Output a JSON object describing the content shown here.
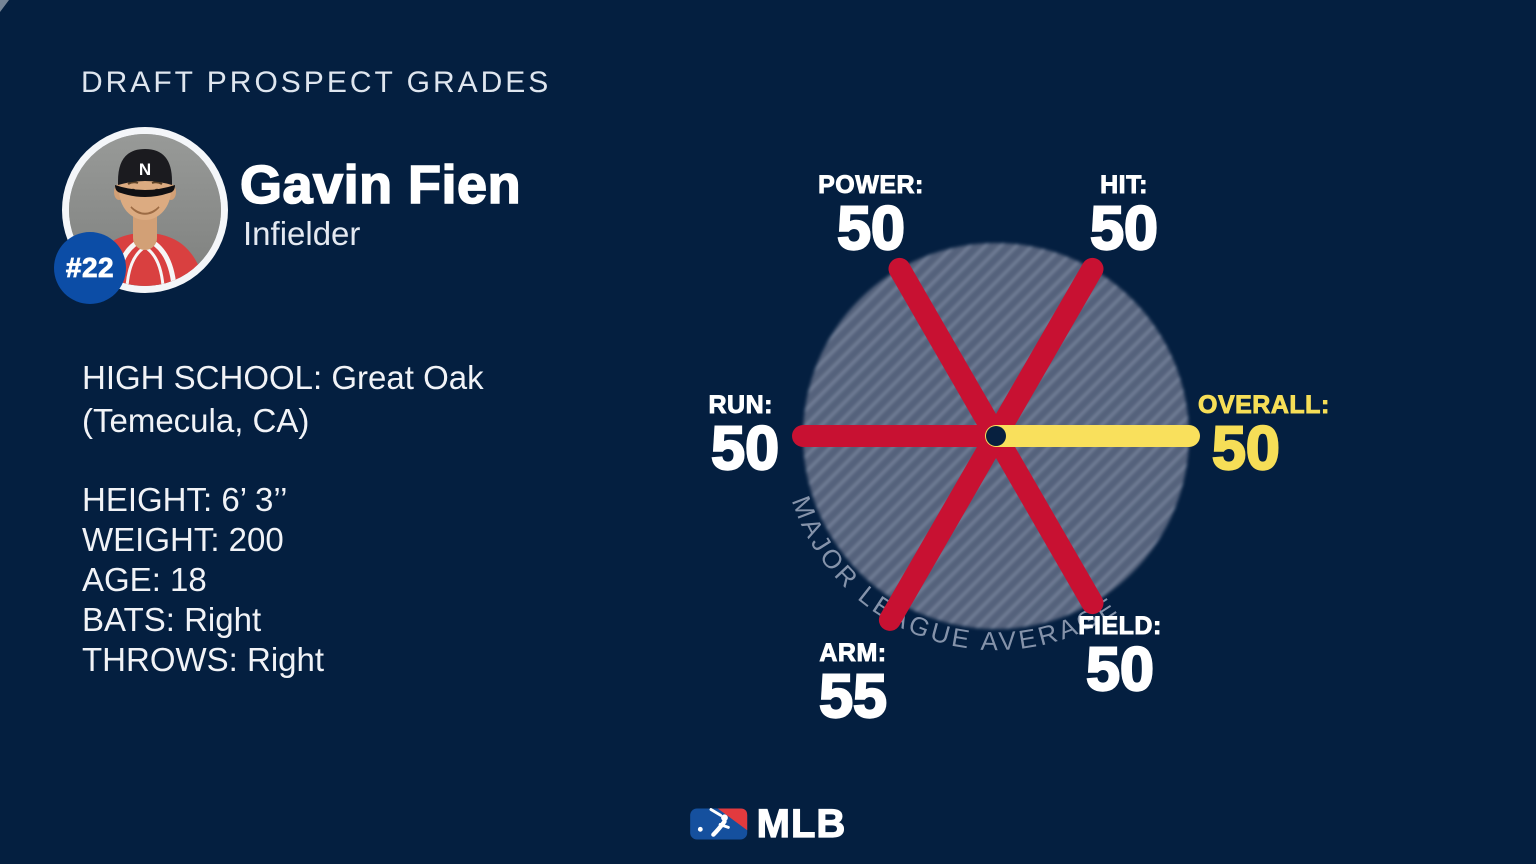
{
  "header": {
    "title": "DRAFT PROSPECT GRADES"
  },
  "player": {
    "name": "Gavin Fien",
    "position": "Infielder",
    "jersey_number": "#22"
  },
  "bio": {
    "school_line1": "HIGH SCHOOL: Great Oak",
    "school_line2": "(Temecula, CA)",
    "attributes": [
      "HEIGHT: 6’ 3’’",
      "WEIGHT: 200",
      "AGE: 18",
      "BATS: Right",
      "THROWS: Right"
    ]
  },
  "chart_data": {
    "type": "radar",
    "title": "DRAFT PROSPECT GRADES",
    "subject": "Gavin Fien",
    "reference_label": "MAJOR LEAGUE AVERAGE",
    "reference_value": 50,
    "categories": [
      "POWER",
      "HIT",
      "RUN",
      "OVERALL",
      "ARM",
      "FIELD"
    ],
    "values": [
      50,
      50,
      50,
      50,
      55,
      50
    ],
    "axes": {
      "power": {
        "label": "POWER:",
        "value": "50"
      },
      "hit": {
        "label": "HIT:",
        "value": "50"
      },
      "run": {
        "label": "RUN:",
        "value": "50"
      },
      "overall": {
        "label": "OVERALL:",
        "value": "50"
      },
      "arm": {
        "label": "ARM:",
        "value": "55"
      },
      "field": {
        "label": "FIELD:",
        "value": "50"
      }
    },
    "colors": {
      "tool_spoke": "#c81132",
      "overall_spoke": "#f9e05c",
      "overall_text": "#f6de57",
      "wheel_fill": "#54627c",
      "wheel_hatch": "#7d89a1",
      "background": "#041f40",
      "hub_dot": "#07203f"
    },
    "legend_position": "around-wheel",
    "grid": false
  },
  "footer": {
    "brand": "MLB"
  }
}
